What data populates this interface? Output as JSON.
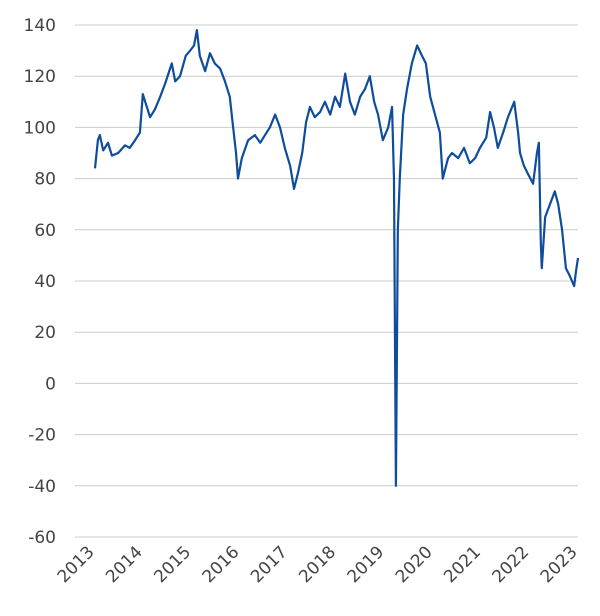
{
  "chart_data": {
    "type": "line",
    "color": "#0f4c9c",
    "x": [
      2013.0,
      2013.06,
      2013.1,
      2013.17,
      2013.27,
      2013.35,
      2013.48,
      2013.62,
      2013.72,
      2013.83,
      2013.93,
      2013.99,
      2014.04,
      2014.14,
      2014.24,
      2014.35,
      2014.45,
      2014.59,
      2014.66,
      2014.76,
      2014.88,
      2014.97,
      2015.05,
      2015.11,
      2015.17,
      2015.28,
      2015.38,
      2015.48,
      2015.59,
      2015.69,
      2015.79,
      2015.86,
      2015.92,
      2015.96,
      2016.04,
      2016.17,
      2016.31,
      2016.42,
      2016.52,
      2016.62,
      2016.73,
      2016.83,
      2016.93,
      2017.04,
      2017.12,
      2017.2,
      2017.29,
      2017.37,
      2017.45,
      2017.55,
      2017.66,
      2017.76,
      2017.87,
      2017.97,
      2018.07,
      2018.18,
      2018.28,
      2018.38,
      2018.49,
      2018.59,
      2018.69,
      2018.78,
      2018.86,
      2018.96,
      2019.07,
      2019.15,
      2019.19,
      2019.23,
      2019.27,
      2019.31,
      2019.38,
      2019.46,
      2019.56,
      2019.67,
      2019.77,
      2019.85,
      2019.94,
      2020.04,
      2020.14,
      2020.2,
      2020.31,
      2020.39,
      2020.52,
      2020.64,
      2020.76,
      2020.87,
      2020.97,
      2021.1,
      2021.18,
      2021.26,
      2021.34,
      2021.45,
      2021.55,
      2021.68,
      2021.76,
      2021.8,
      2021.88,
      2021.96,
      2022.07,
      2022.15,
      2022.19,
      2022.23,
      2022.25,
      2022.32,
      2022.42,
      2022.52,
      2022.59,
      2022.67,
      2022.75,
      2022.83,
      2022.92,
      2022.96,
      2023.0
    ],
    "values": [
      84,
      95,
      97,
      91,
      94,
      89,
      90,
      93,
      92,
      95,
      98,
      113,
      110,
      104,
      107,
      112,
      117,
      125,
      118,
      120,
      128,
      130,
      132,
      138,
      128,
      122,
      129,
      125,
      123,
      118,
      112,
      100,
      90,
      80,
      88,
      95,
      97,
      94,
      97,
      100,
      105,
      100,
      92,
      85,
      76,
      82,
      90,
      102,
      108,
      104,
      106,
      110,
      105,
      112,
      108,
      121,
      110,
      105,
      112,
      115,
      120,
      110,
      105,
      95,
      100,
      108,
      80,
      -40,
      60,
      80,
      105,
      115,
      125,
      132,
      128,
      125,
      112,
      105,
      98,
      80,
      88,
      90,
      88,
      92,
      86,
      88,
      92,
      96,
      106,
      100,
      92,
      98,
      104,
      110,
      98,
      90,
      85,
      82,
      78,
      90,
      94,
      55,
      45,
      65,
      70,
      75,
      70,
      60,
      45,
      42,
      38,
      44,
      49
    ],
    "xlim": [
      2013,
      2023
    ],
    "xticks": [
      2013,
      2014,
      2015,
      2016,
      2017,
      2018,
      2019,
      2020,
      2021,
      2022,
      2023
    ],
    "ylim": [
      -60,
      140
    ],
    "yticks": [
      -60,
      -40,
      -20,
      0,
      20,
      40,
      60,
      80,
      100,
      120,
      140
    ],
    "grid": true
  }
}
